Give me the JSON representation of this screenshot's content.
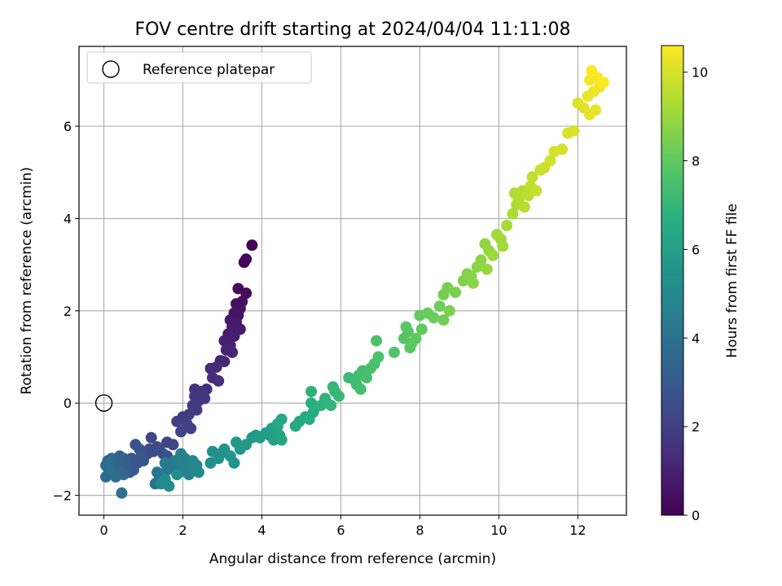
{
  "chart_data": {
    "type": "scatter",
    "title": "FOV centre drift starting at 2024/04/04 11:11:08",
    "xlabel": "Angular distance from reference (arcmin)",
    "ylabel": "Rotation from reference (arcmin)",
    "xlim": [
      -0.63,
      13.23
    ],
    "ylim": [
      -2.43,
      7.73
    ],
    "xticks": [
      0,
      2,
      4,
      6,
      8,
      10,
      12
    ],
    "yticks": [
      -2,
      0,
      2,
      4,
      6
    ],
    "grid": true,
    "legend": {
      "placement": "upper-left",
      "entries": [
        "Reference platepar"
      ]
    },
    "reference_point": {
      "x": 0,
      "y": 0
    },
    "colorbar": {
      "label": "Hours from first FF file",
      "colormap": "viridis",
      "range": [
        0,
        10.6
      ],
      "ticks": [
        0,
        2,
        4,
        6,
        8,
        10
      ]
    },
    "points": [
      {
        "x": 3.75,
        "y": 3.42,
        "h": 0.05
      },
      {
        "x": 3.55,
        "y": 3.05,
        "h": 0.15
      },
      {
        "x": 3.6,
        "y": 3.12,
        "h": 0.2
      },
      {
        "x": 3.4,
        "y": 2.48,
        "h": 0.3
      },
      {
        "x": 3.6,
        "y": 2.38,
        "h": 0.35
      },
      {
        "x": 3.5,
        "y": 2.2,
        "h": 0.4
      },
      {
        "x": 3.35,
        "y": 2.15,
        "h": 0.45
      },
      {
        "x": 3.45,
        "y": 2.05,
        "h": 0.5
      },
      {
        "x": 3.3,
        "y": 1.95,
        "h": 0.55
      },
      {
        "x": 3.4,
        "y": 1.9,
        "h": 0.6
      },
      {
        "x": 3.2,
        "y": 1.8,
        "h": 0.65
      },
      {
        "x": 3.35,
        "y": 1.75,
        "h": 0.7
      },
      {
        "x": 3.25,
        "y": 1.65,
        "h": 0.75
      },
      {
        "x": 3.45,
        "y": 1.6,
        "h": 0.8
      },
      {
        "x": 3.15,
        "y": 1.5,
        "h": 0.85
      },
      {
        "x": 3.3,
        "y": 1.45,
        "h": 0.9
      },
      {
        "x": 3.05,
        "y": 1.35,
        "h": 0.95
      },
      {
        "x": 3.2,
        "y": 1.25,
        "h": 1.0
      },
      {
        "x": 3.1,
        "y": 1.15,
        "h": 1.05
      },
      {
        "x": 3.25,
        "y": 1.1,
        "h": 1.1
      },
      {
        "x": 2.95,
        "y": 0.92,
        "h": 1.15
      },
      {
        "x": 3.05,
        "y": 0.9,
        "h": 1.2
      },
      {
        "x": 2.7,
        "y": 0.75,
        "h": 1.25
      },
      {
        "x": 2.85,
        "y": 0.78,
        "h": 1.3
      },
      {
        "x": 2.75,
        "y": 0.55,
        "h": 1.35
      },
      {
        "x": 2.9,
        "y": 0.48,
        "h": 1.4
      },
      {
        "x": 2.6,
        "y": 0.3,
        "h": 1.45
      },
      {
        "x": 2.3,
        "y": 0.3,
        "h": 1.5
      },
      {
        "x": 2.45,
        "y": 0.25,
        "h": 1.55
      },
      {
        "x": 2.5,
        "y": 0.2,
        "h": 1.6
      },
      {
        "x": 2.3,
        "y": 0.15,
        "h": 1.65
      },
      {
        "x": 2.55,
        "y": 0.1,
        "h": 1.7
      },
      {
        "x": 2.4,
        "y": 0.05,
        "h": 1.75
      },
      {
        "x": 2.25,
        "y": -0.05,
        "h": 1.8
      },
      {
        "x": 2.35,
        "y": -0.15,
        "h": 1.85
      },
      {
        "x": 2.15,
        "y": -0.25,
        "h": 1.9
      },
      {
        "x": 2.0,
        "y": -0.3,
        "h": 1.95
      },
      {
        "x": 1.85,
        "y": -0.4,
        "h": 2.0
      },
      {
        "x": 2.1,
        "y": -0.45,
        "h": 2.05
      },
      {
        "x": 2.2,
        "y": -0.55,
        "h": 2.1
      },
      {
        "x": 1.95,
        "y": -0.62,
        "h": 2.15
      },
      {
        "x": 1.6,
        "y": -0.85,
        "h": 2.2
      },
      {
        "x": 1.75,
        "y": -0.9,
        "h": 2.25
      },
      {
        "x": 1.2,
        "y": -0.75,
        "h": 2.3
      },
      {
        "x": 1.35,
        "y": -0.95,
        "h": 2.35
      },
      {
        "x": 1.15,
        "y": -1.0,
        "h": 2.4
      },
      {
        "x": 1.25,
        "y": -1.05,
        "h": 2.45
      },
      {
        "x": 1.1,
        "y": -1.1,
        "h": 2.5
      },
      {
        "x": 1.4,
        "y": -1.0,
        "h": 2.55
      },
      {
        "x": 1.5,
        "y": -1.1,
        "h": 2.6
      },
      {
        "x": 1.6,
        "y": -1.15,
        "h": 2.65
      },
      {
        "x": 0.8,
        "y": -0.9,
        "h": 2.7
      },
      {
        "x": 0.9,
        "y": -1.0,
        "h": 2.75
      },
      {
        "x": 0.95,
        "y": -1.15,
        "h": 2.8
      },
      {
        "x": 1.0,
        "y": -1.25,
        "h": 2.85
      },
      {
        "x": 0.7,
        "y": -1.2,
        "h": 2.9
      },
      {
        "x": 0.85,
        "y": -1.3,
        "h": 2.95
      },
      {
        "x": 0.75,
        "y": -1.45,
        "h": 3.0
      },
      {
        "x": 0.6,
        "y": -1.35,
        "h": 3.05
      },
      {
        "x": 0.65,
        "y": -1.5,
        "h": 3.1
      },
      {
        "x": 0.5,
        "y": -1.2,
        "h": 3.15
      },
      {
        "x": 0.55,
        "y": -1.3,
        "h": 3.2
      },
      {
        "x": 0.45,
        "y": -1.4,
        "h": 3.25
      },
      {
        "x": 0.4,
        "y": -1.15,
        "h": 3.3
      },
      {
        "x": 0.35,
        "y": -1.25,
        "h": 3.35
      },
      {
        "x": 0.3,
        "y": -1.35,
        "h": 3.4
      },
      {
        "x": 0.25,
        "y": -1.45,
        "h": 3.45
      },
      {
        "x": 0.5,
        "y": -1.55,
        "h": 3.5
      },
      {
        "x": 0.4,
        "y": -1.5,
        "h": 3.55
      },
      {
        "x": 0.2,
        "y": -1.2,
        "h": 3.6
      },
      {
        "x": 0.15,
        "y": -1.3,
        "h": 3.65
      },
      {
        "x": 0.1,
        "y": -1.4,
        "h": 3.7
      },
      {
        "x": 0.1,
        "y": -1.25,
        "h": 3.75
      },
      {
        "x": 0.05,
        "y": -1.35,
        "h": 3.8
      },
      {
        "x": 0.05,
        "y": -1.6,
        "h": 3.85
      },
      {
        "x": 0.15,
        "y": -1.45,
        "h": 3.9
      },
      {
        "x": 0.3,
        "y": -1.6,
        "h": 3.95
      },
      {
        "x": 0.45,
        "y": -1.95,
        "h": 4.0
      },
      {
        "x": 1.3,
        "y": -1.75,
        "h": 4.05
      },
      {
        "x": 1.4,
        "y": -1.65,
        "h": 4.1
      },
      {
        "x": 1.5,
        "y": -1.55,
        "h": 4.15
      },
      {
        "x": 1.35,
        "y": -1.5,
        "h": 4.2
      },
      {
        "x": 1.6,
        "y": -1.45,
        "h": 4.25
      },
      {
        "x": 1.7,
        "y": -1.35,
        "h": 4.3
      },
      {
        "x": 1.55,
        "y": -1.3,
        "h": 4.35
      },
      {
        "x": 1.8,
        "y": -1.25,
        "h": 4.4
      },
      {
        "x": 1.75,
        "y": -1.4,
        "h": 4.45
      },
      {
        "x": 1.9,
        "y": -1.5,
        "h": 4.5
      },
      {
        "x": 2.0,
        "y": -1.3,
        "h": 4.55
      },
      {
        "x": 1.95,
        "y": -1.1,
        "h": 4.6
      },
      {
        "x": 2.05,
        "y": -1.2,
        "h": 4.65
      },
      {
        "x": 2.1,
        "y": -1.4,
        "h": 4.7
      },
      {
        "x": 2.15,
        "y": -1.55,
        "h": 4.75
      },
      {
        "x": 2.2,
        "y": -1.3,
        "h": 4.8
      },
      {
        "x": 2.3,
        "y": -1.45,
        "h": 4.85
      },
      {
        "x": 2.25,
        "y": -1.25,
        "h": 4.9
      },
      {
        "x": 2.35,
        "y": -1.35,
        "h": 4.95
      },
      {
        "x": 2.4,
        "y": -1.5,
        "h": 5.0
      },
      {
        "x": 1.45,
        "y": -1.75,
        "h": 5.05
      },
      {
        "x": 1.65,
        "y": -1.8,
        "h": 5.1
      },
      {
        "x": 1.55,
        "y": -1.65,
        "h": 5.15
      },
      {
        "x": 1.85,
        "y": -1.55,
        "h": 5.2
      },
      {
        "x": 2.7,
        "y": -1.3,
        "h": 5.25
      },
      {
        "x": 2.75,
        "y": -1.05,
        "h": 5.3
      },
      {
        "x": 2.9,
        "y": -1.2,
        "h": 5.35
      },
      {
        "x": 2.95,
        "y": -1.1,
        "h": 5.4
      },
      {
        "x": 3.05,
        "y": -1.0,
        "h": 5.45
      },
      {
        "x": 3.2,
        "y": -1.15,
        "h": 5.5
      },
      {
        "x": 3.3,
        "y": -1.3,
        "h": 5.55
      },
      {
        "x": 3.35,
        "y": -0.85,
        "h": 5.6
      },
      {
        "x": 3.45,
        "y": -1.0,
        "h": 5.65
      },
      {
        "x": 3.6,
        "y": -0.9,
        "h": 5.7
      },
      {
        "x": 3.75,
        "y": -0.75,
        "h": 5.75
      },
      {
        "x": 3.85,
        "y": -0.7,
        "h": 5.8
      },
      {
        "x": 3.95,
        "y": -0.75,
        "h": 5.85
      },
      {
        "x": 4.1,
        "y": -0.65,
        "h": 5.9
      },
      {
        "x": 4.25,
        "y": -0.55,
        "h": 5.95
      },
      {
        "x": 4.2,
        "y": -0.7,
        "h": 6.0
      },
      {
        "x": 4.3,
        "y": -0.8,
        "h": 6.05
      },
      {
        "x": 4.4,
        "y": -0.5,
        "h": 6.1
      },
      {
        "x": 4.35,
        "y": -0.65,
        "h": 6.15
      },
      {
        "x": 4.45,
        "y": -0.7,
        "h": 6.2
      },
      {
        "x": 4.5,
        "y": -0.8,
        "h": 6.25
      },
      {
        "x": 4.5,
        "y": -0.35,
        "h": 6.3
      },
      {
        "x": 4.4,
        "y": -0.45,
        "h": 6.35
      },
      {
        "x": 4.85,
        "y": -0.5,
        "h": 6.4
      },
      {
        "x": 4.95,
        "y": -0.4,
        "h": 6.45
      },
      {
        "x": 5.1,
        "y": -0.3,
        "h": 6.5
      },
      {
        "x": 5.2,
        "y": -0.35,
        "h": 6.55
      },
      {
        "x": 5.3,
        "y": -0.2,
        "h": 6.6
      },
      {
        "x": 5.25,
        "y": 0.0,
        "h": 6.65
      },
      {
        "x": 5.35,
        "y": -0.1,
        "h": 6.7
      },
      {
        "x": 5.25,
        "y": 0.25,
        "h": 6.75
      },
      {
        "x": 5.5,
        "y": -0.05,
        "h": 6.8
      },
      {
        "x": 5.6,
        "y": 0.1,
        "h": 6.85
      },
      {
        "x": 5.65,
        "y": 0.0,
        "h": 6.9
      },
      {
        "x": 5.75,
        "y": -0.05,
        "h": 6.95
      },
      {
        "x": 5.8,
        "y": 0.35,
        "h": 7.0
      },
      {
        "x": 5.85,
        "y": 0.25,
        "h": 7.05
      },
      {
        "x": 5.95,
        "y": 0.15,
        "h": 7.1
      },
      {
        "x": 6.2,
        "y": 0.55,
        "h": 7.15
      },
      {
        "x": 6.35,
        "y": 0.5,
        "h": 7.2
      },
      {
        "x": 6.4,
        "y": 0.4,
        "h": 7.25
      },
      {
        "x": 6.45,
        "y": 0.6,
        "h": 7.3
      },
      {
        "x": 6.55,
        "y": 0.7,
        "h": 7.35
      },
      {
        "x": 6.5,
        "y": 0.3,
        "h": 7.4
      },
      {
        "x": 6.65,
        "y": 0.55,
        "h": 7.45
      },
      {
        "x": 6.75,
        "y": 0.75,
        "h": 7.5
      },
      {
        "x": 6.85,
        "y": 0.85,
        "h": 7.55
      },
      {
        "x": 6.95,
        "y": 1.0,
        "h": 7.6
      },
      {
        "x": 6.9,
        "y": 1.35,
        "h": 7.65
      },
      {
        "x": 7.35,
        "y": 1.1,
        "h": 7.7
      },
      {
        "x": 7.6,
        "y": 1.4,
        "h": 7.75
      },
      {
        "x": 7.7,
        "y": 1.55,
        "h": 7.8
      },
      {
        "x": 7.65,
        "y": 1.65,
        "h": 7.85
      },
      {
        "x": 7.75,
        "y": 1.2,
        "h": 7.9
      },
      {
        "x": 7.8,
        "y": 1.3,
        "h": 7.95
      },
      {
        "x": 7.9,
        "y": 1.4,
        "h": 8.0
      },
      {
        "x": 8.05,
        "y": 1.6,
        "h": 8.05
      },
      {
        "x": 8.0,
        "y": 1.9,
        "h": 8.1
      },
      {
        "x": 8.2,
        "y": 1.95,
        "h": 8.15
      },
      {
        "x": 8.35,
        "y": 1.85,
        "h": 8.2
      },
      {
        "x": 8.5,
        "y": 2.1,
        "h": 8.25
      },
      {
        "x": 8.6,
        "y": 1.8,
        "h": 8.3
      },
      {
        "x": 8.6,
        "y": 2.35,
        "h": 8.35
      },
      {
        "x": 8.7,
        "y": 2.5,
        "h": 8.4
      },
      {
        "x": 8.75,
        "y": 2.0,
        "h": 8.45
      },
      {
        "x": 8.9,
        "y": 2.4,
        "h": 8.5
      },
      {
        "x": 9.1,
        "y": 2.65,
        "h": 8.55
      },
      {
        "x": 9.2,
        "y": 2.8,
        "h": 8.6
      },
      {
        "x": 9.3,
        "y": 2.75,
        "h": 8.65
      },
      {
        "x": 9.35,
        "y": 2.6,
        "h": 8.7
      },
      {
        "x": 9.45,
        "y": 2.95,
        "h": 8.75
      },
      {
        "x": 9.55,
        "y": 3.1,
        "h": 8.8
      },
      {
        "x": 9.65,
        "y": 3.45,
        "h": 8.85
      },
      {
        "x": 9.75,
        "y": 3.3,
        "h": 8.9
      },
      {
        "x": 9.7,
        "y": 2.9,
        "h": 8.95
      },
      {
        "x": 9.85,
        "y": 3.2,
        "h": 9.0
      },
      {
        "x": 9.95,
        "y": 3.65,
        "h": 9.05
      },
      {
        "x": 10.05,
        "y": 3.55,
        "h": 9.1
      },
      {
        "x": 10.1,
        "y": 3.4,
        "h": 9.15
      },
      {
        "x": 10.2,
        "y": 3.85,
        "h": 9.2
      },
      {
        "x": 10.35,
        "y": 4.1,
        "h": 9.25
      },
      {
        "x": 10.45,
        "y": 4.3,
        "h": 9.3
      },
      {
        "x": 10.4,
        "y": 4.55,
        "h": 9.35
      },
      {
        "x": 10.5,
        "y": 4.4,
        "h": 9.4
      },
      {
        "x": 10.6,
        "y": 4.6,
        "h": 9.45
      },
      {
        "x": 10.65,
        "y": 4.25,
        "h": 9.5
      },
      {
        "x": 10.75,
        "y": 4.5,
        "h": 9.55
      },
      {
        "x": 10.8,
        "y": 4.7,
        "h": 9.6
      },
      {
        "x": 10.85,
        "y": 4.9,
        "h": 9.65
      },
      {
        "x": 10.95,
        "y": 4.6,
        "h": 9.7
      },
      {
        "x": 11.05,
        "y": 5.05,
        "h": 9.75
      },
      {
        "x": 11.15,
        "y": 5.1,
        "h": 9.8
      },
      {
        "x": 11.3,
        "y": 5.25,
        "h": 9.85
      },
      {
        "x": 11.4,
        "y": 5.45,
        "h": 9.9
      },
      {
        "x": 11.6,
        "y": 5.5,
        "h": 9.95
      },
      {
        "x": 11.75,
        "y": 5.85,
        "h": 10.0
      },
      {
        "x": 11.9,
        "y": 5.9,
        "h": 10.05
      },
      {
        "x": 12.0,
        "y": 6.5,
        "h": 10.1
      },
      {
        "x": 12.15,
        "y": 6.4,
        "h": 10.15
      },
      {
        "x": 12.3,
        "y": 6.25,
        "h": 10.2
      },
      {
        "x": 12.45,
        "y": 6.35,
        "h": 10.25
      },
      {
        "x": 12.25,
        "y": 6.65,
        "h": 10.3
      },
      {
        "x": 12.4,
        "y": 6.75,
        "h": 10.35
      },
      {
        "x": 12.55,
        "y": 6.85,
        "h": 10.4
      },
      {
        "x": 12.3,
        "y": 7.0,
        "h": 10.45
      },
      {
        "x": 12.5,
        "y": 7.05,
        "h": 10.5
      },
      {
        "x": 12.65,
        "y": 6.95,
        "h": 10.55
      },
      {
        "x": 12.35,
        "y": 7.2,
        "h": 10.6
      }
    ]
  }
}
